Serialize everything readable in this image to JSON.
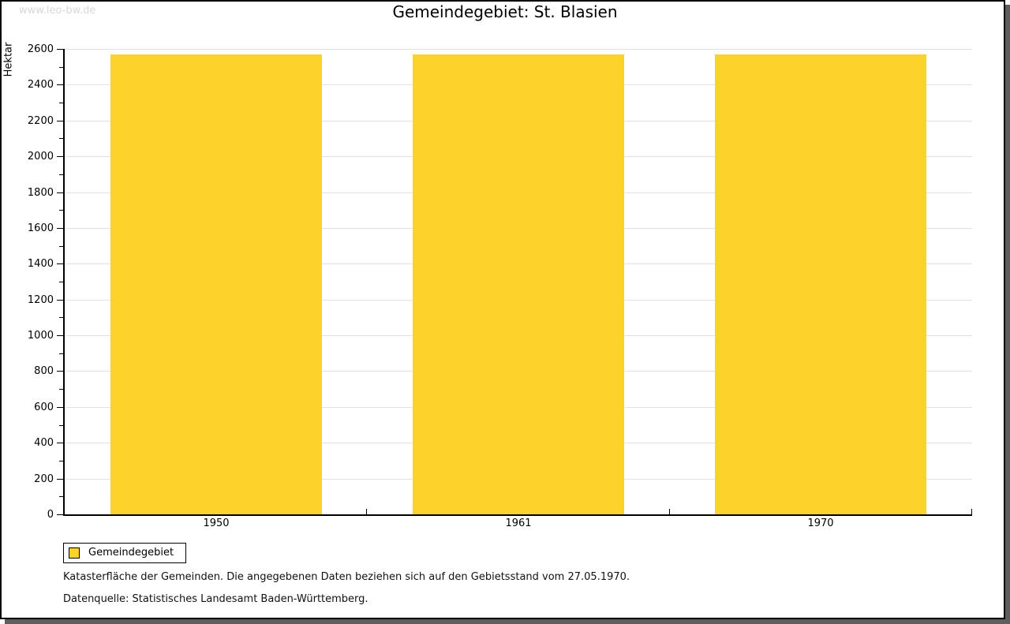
{
  "watermark": "www.leo-bw.de",
  "title": "Gemeindegebiet: St. Blasien",
  "chart_data": {
    "type": "bar",
    "title": "Gemeindegebiet: St. Blasien",
    "categories": [
      "1950",
      "1961",
      "1970"
    ],
    "series": [
      {
        "name": "Gemeindegebiet",
        "values": [
          2571,
          2571,
          2571
        ]
      }
    ],
    "xlabel": "",
    "ylabel": "Hektar",
    "unit": "Hektar",
    "ylim": [
      0,
      2600
    ],
    "ytick_step": 200,
    "ytick_minor_step": 100,
    "grid": true,
    "bar_color": "#fdd32b",
    "legend_position": "bottom-left"
  },
  "legend": {
    "items": [
      {
        "label": "Gemeindegebiet",
        "color": "#fdd32b"
      }
    ]
  },
  "notes": [
    "Katasterfläche der Gemeinden. Die angegebenen Daten beziehen sich auf den Gebietsstand vom 27.05.1970.",
    "Datenquelle: Statistisches Landesamt Baden-Württemberg."
  ]
}
